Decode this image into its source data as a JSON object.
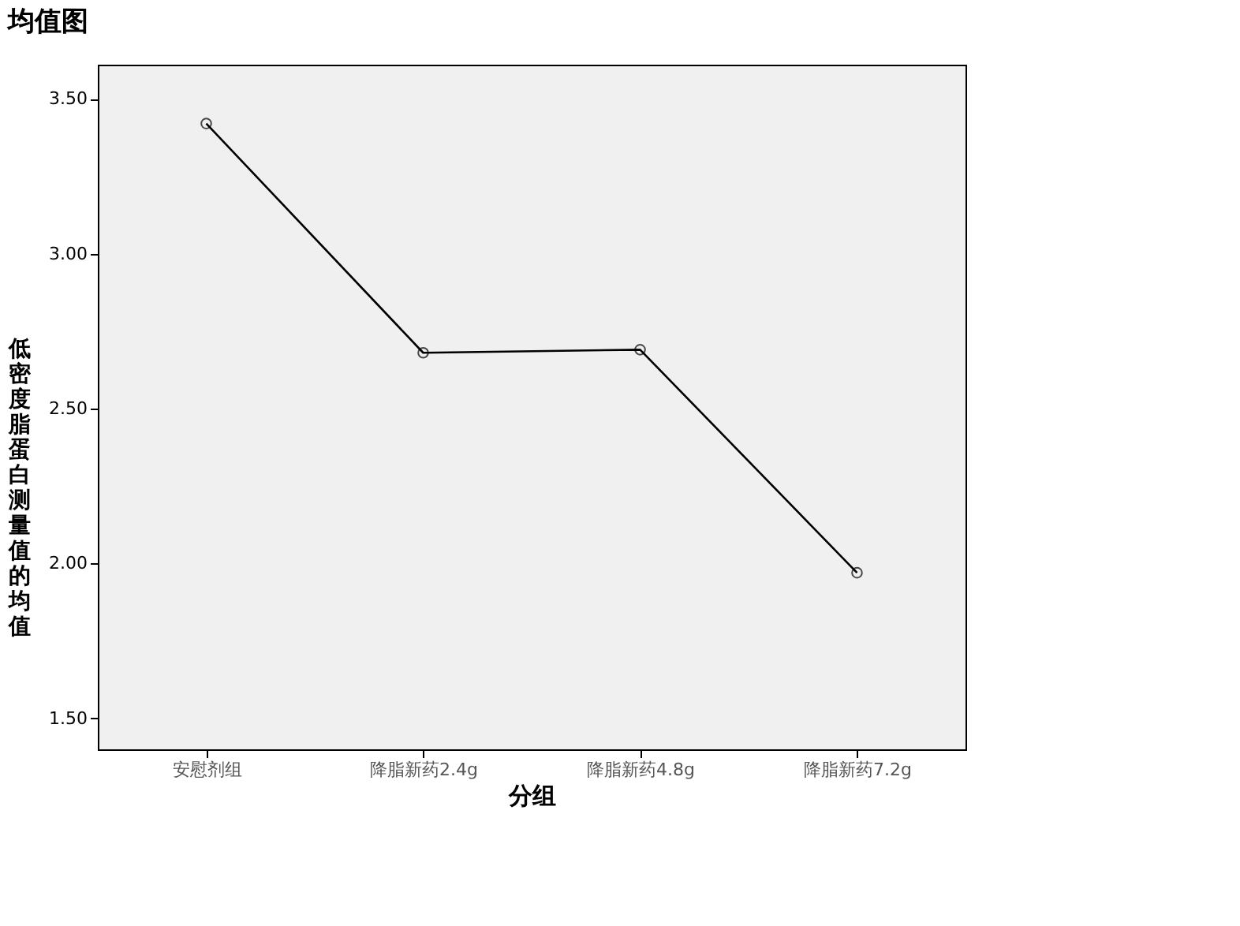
{
  "chart_data": {
    "type": "line",
    "title": "均值图",
    "xlabel": "分组",
    "ylabel": "低密度脂蛋白测量值的均值",
    "categories": [
      "安慰剂组",
      "降脂新药2.4g",
      "降脂新药4.8g",
      "降脂新药7.2g"
    ],
    "series": [
      {
        "color": "#000000",
        "values": [
          3.42,
          2.68,
          2.69,
          1.97
        ]
      }
    ],
    "ylim": [
      1.4,
      3.61
    ],
    "yticks": [
      {
        "value": 1.5,
        "label": "1.50"
      },
      {
        "value": 2.0,
        "label": "2.00"
      },
      {
        "value": 2.5,
        "label": "2.50"
      },
      {
        "value": 3.0,
        "label": "3.00"
      },
      {
        "value": 3.5,
        "label": "3.50"
      }
    ],
    "marker": "circle",
    "line_style": "solid",
    "grid": false
  }
}
